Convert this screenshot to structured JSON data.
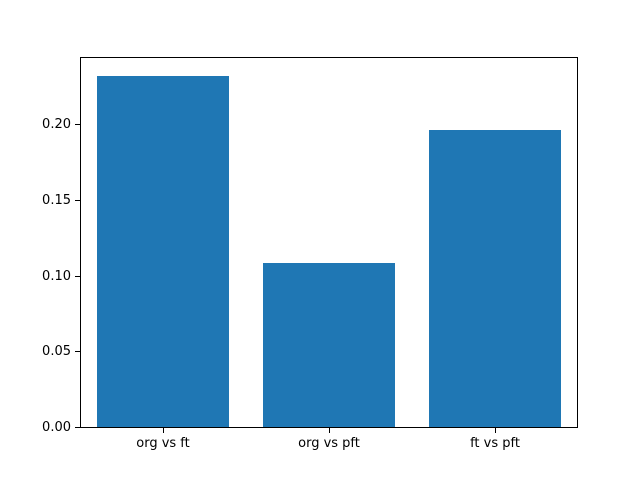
{
  "chart_data": {
    "type": "bar",
    "title": "",
    "xlabel": "",
    "ylabel": "",
    "categories": [
      "org vs ft",
      "org vs pft",
      "ft vs pft"
    ],
    "values": [
      0.232,
      0.108,
      0.196
    ],
    "bar_color": "#1f77b4",
    "bar_width_fraction": 0.8,
    "ylim": [
      0,
      0.2436
    ],
    "y_ticks": [
      0.0,
      0.05,
      0.1,
      0.15,
      0.2
    ],
    "y_tick_labels": [
      "0.00",
      "0.05",
      "0.10",
      "0.15",
      "0.20"
    ],
    "grid": false,
    "legend": false
  }
}
